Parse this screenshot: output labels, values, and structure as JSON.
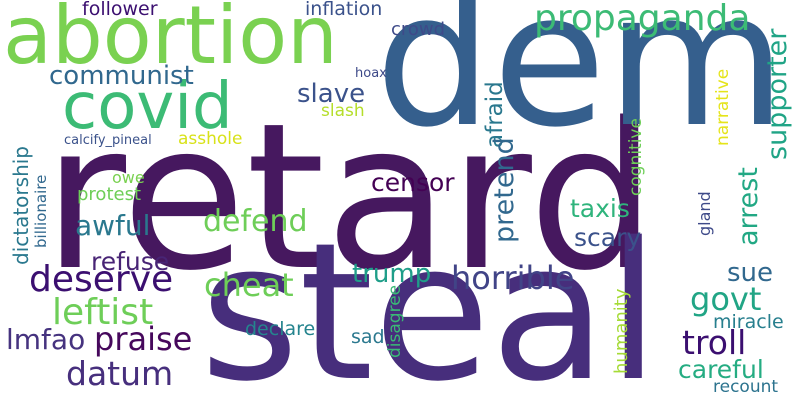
{
  "words": [
    {
      "text": "retard",
      "color": "#46185f",
      "vertical": false
    },
    {
      "text": "steal",
      "color": "#472e7c",
      "vertical": false
    },
    {
      "text": "dem",
      "color": "#355f8d",
      "vertical": false
    },
    {
      "text": "abortion",
      "color": "#7ad151",
      "vertical": false
    },
    {
      "text": "covid",
      "color": "#3cbb75",
      "vertical": false
    },
    {
      "text": "propaganda",
      "color": "#3cbb75",
      "vertical": false
    },
    {
      "text": "communist",
      "color": "#31688e",
      "vertical": false
    },
    {
      "text": "slave",
      "color": "#3b528b",
      "vertical": false
    },
    {
      "text": "follower",
      "color": "#3b0f70",
      "vertical": false
    },
    {
      "text": "inflation",
      "color": "#3b528b",
      "vertical": false
    },
    {
      "text": "crowd",
      "color": "#3e4a89",
      "vertical": false
    },
    {
      "text": "hoax",
      "color": "#3e4a89",
      "vertical": false
    },
    {
      "text": "slash",
      "color": "#b5de2b",
      "vertical": false
    },
    {
      "text": "calcify_pineal",
      "color": "#3b528b",
      "vertical": false
    },
    {
      "text": "asshole",
      "color": "#d8e219",
      "vertical": false
    },
    {
      "text": "owe",
      "color": "#7ad151",
      "vertical": false
    },
    {
      "text": "protest",
      "color": "#6ece58",
      "vertical": false
    },
    {
      "text": "censor",
      "color": "#440154",
      "vertical": false
    },
    {
      "text": "awful",
      "color": "#2a788e",
      "vertical": false
    },
    {
      "text": "defend",
      "color": "#6ece58",
      "vertical": false
    },
    {
      "text": "taxis",
      "color": "#2fb47c",
      "vertical": false
    },
    {
      "text": "scary",
      "color": "#3b528b",
      "vertical": false
    },
    {
      "text": "refuse",
      "color": "#482475",
      "vertical": false
    },
    {
      "text": "deserve",
      "color": "#3b0f70",
      "vertical": false
    },
    {
      "text": "cheat",
      "color": "#6ece58",
      "vertical": false
    },
    {
      "text": "trump",
      "color": "#1f9e89",
      "vertical": false
    },
    {
      "text": "horrible",
      "color": "#414487",
      "vertical": false
    },
    {
      "text": "sue",
      "color": "#31688e",
      "vertical": false
    },
    {
      "text": "leftist",
      "color": "#6ece58",
      "vertical": false
    },
    {
      "text": "govt",
      "color": "#21a585",
      "vertical": false
    },
    {
      "text": "troll",
      "color": "#3b0f70",
      "vertical": false
    },
    {
      "text": "praise",
      "color": "#46085c",
      "vertical": false
    },
    {
      "text": "lmfao",
      "color": "#46337f",
      "vertical": false
    },
    {
      "text": "datum",
      "color": "#472f7d",
      "vertical": false
    },
    {
      "text": "declare",
      "color": "#25848e",
      "vertical": false
    },
    {
      "text": "sad",
      "color": "#2a788e",
      "vertical": false
    },
    {
      "text": "miracle",
      "color": "#277f8e",
      "vertical": false
    },
    {
      "text": "careful",
      "color": "#25ac82",
      "vertical": false
    },
    {
      "text": "recount",
      "color": "#2c738e",
      "vertical": false
    },
    {
      "text": "dictatorship",
      "color": "#2a788e",
      "vertical": true
    },
    {
      "text": "billionaire",
      "color": "#31688e",
      "vertical": true
    },
    {
      "text": "afraid",
      "color": "#2a788e",
      "vertical": true
    },
    {
      "text": "pretend",
      "color": "#31688e",
      "vertical": true
    },
    {
      "text": "cognitive",
      "color": "#6ece58",
      "vertical": true
    },
    {
      "text": "narrative",
      "color": "#e5e419",
      "vertical": true
    },
    {
      "text": "supporter",
      "color": "#20a486",
      "vertical": true
    },
    {
      "text": "arrest",
      "color": "#22a884",
      "vertical": true
    },
    {
      "text": "gland",
      "color": "#3e4a89",
      "vertical": true
    },
    {
      "text": "humanity",
      "color": "#a5db36",
      "vertical": true
    },
    {
      "text": "disagree",
      "color": "#3aba76",
      "vertical": true
    }
  ]
}
